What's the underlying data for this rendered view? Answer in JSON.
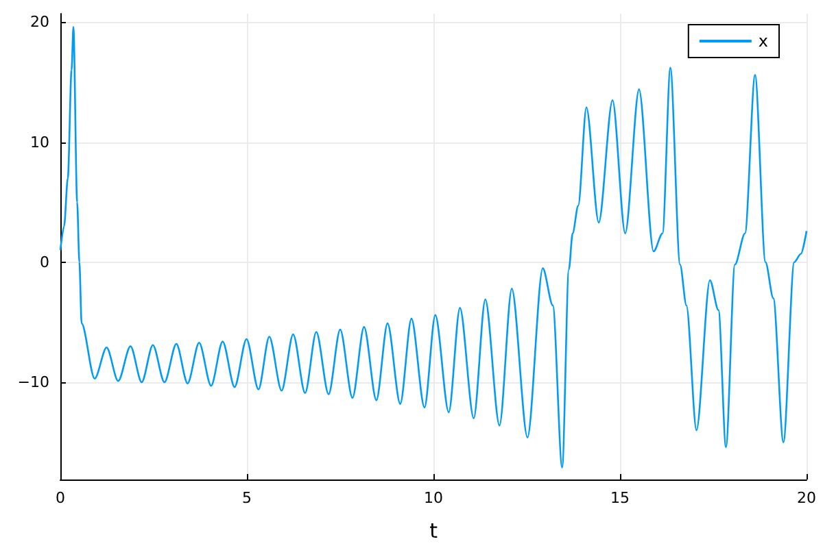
{
  "chart_data": {
    "type": "line",
    "xlabel": "t",
    "xlim": [
      0,
      20
    ],
    "xticks": [
      0,
      5,
      10,
      15,
      20
    ],
    "ylim": [
      -18.1,
      20.7
    ],
    "yticks": [
      {
        "value": -10,
        "label": "−10"
      },
      0,
      10,
      20
    ],
    "grid": true,
    "legend": "top right",
    "marker": "none",
    "line_style": "solid",
    "series": [
      {
        "name": "x",
        "color": "#009af9",
        "x": [
          0,
          0.1,
          0.2,
          0.3,
          0.35,
          0.45,
          0.51,
          0.57,
          0.92,
          1.24,
          1.55,
          1.88,
          2.18,
          2.48,
          2.79,
          3.11,
          3.41,
          3.72,
          4.04,
          4.35,
          4.67,
          4.99,
          5.31,
          5.6,
          5.93,
          6.24,
          6.56,
          6.86,
          7.19,
          7.5,
          7.83,
          8.14,
          8.47,
          8.77,
          9.11,
          9.41,
          9.76,
          10.05,
          10.41,
          10.71,
          11.08,
          11.39,
          11.77,
          12.1,
          12.52,
          12.93,
          13.2,
          13.45,
          13.63,
          13.73,
          13.88,
          14.1,
          14.43,
          14.8,
          15.14,
          15.51,
          15.9,
          16.14,
          16.35,
          16.61,
          16.78,
          17.05,
          17.41,
          17.64,
          17.84,
          18.08,
          18.35,
          18.62,
          18.9,
          19.11,
          19.38,
          19.67,
          19.85,
          20
        ],
        "values": [
          1,
          3,
          7,
          16,
          19.6,
          5,
          0,
          -5.1,
          -9.7,
          -7.1,
          -9.9,
          -7,
          -10,
          -6.9,
          -10,
          -6.8,
          -10.1,
          -6.7,
          -10.3,
          -6.6,
          -10.4,
          -6.4,
          -10.6,
          -6.2,
          -10.7,
          -6,
          -10.9,
          -5.8,
          -11,
          -5.6,
          -11.3,
          -5.4,
          -11.5,
          -5.1,
          -11.8,
          -4.7,
          -12.1,
          -4.4,
          -12.5,
          -3.8,
          -13,
          -3.1,
          -13.6,
          -2.2,
          -14.6,
          -0.5,
          -3.6,
          -17.1,
          -0.6,
          2.4,
          4.7,
          12.9,
          3.3,
          13.5,
          2.4,
          14.4,
          0.9,
          2.4,
          16.2,
          -0.2,
          -3.6,
          -14,
          -1.5,
          -4,
          -15.4,
          -0.2,
          2.4,
          15.6,
          0,
          -3,
          -15,
          0,
          0.7,
          2.6
        ]
      }
    ]
  }
}
